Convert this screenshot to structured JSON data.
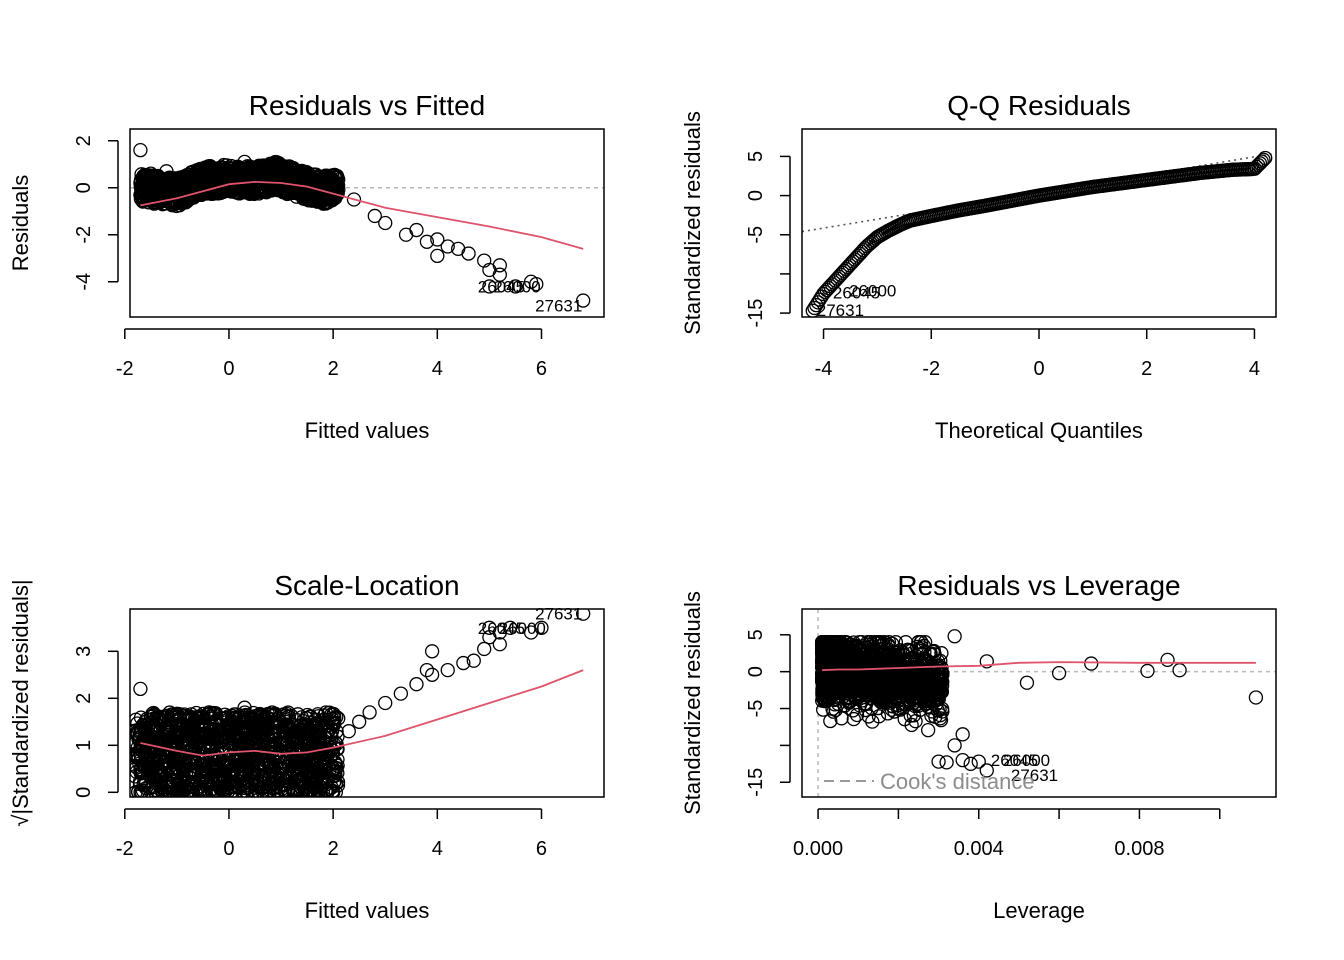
{
  "colors": {
    "points": "#000000",
    "smooth": "#df536b",
    "reference": "#b8b8b8",
    "cook": "#8c8c8c"
  },
  "chart_data": [
    {
      "id": "rvf",
      "type": "scatter",
      "title": "Residuals vs Fitted",
      "xlabel": "Fitted values",
      "ylabel": "Residuals",
      "xlim": [
        -1.9,
        7.2
      ],
      "ylim": [
        -5.5,
        2.5
      ],
      "xticks": [
        -2,
        0,
        2,
        4,
        6
      ],
      "yticks": [
        -4,
        -2,
        0,
        2
      ],
      "grid": false,
      "reference_line": {
        "y": 0,
        "style": "dotted"
      },
      "cluster": {
        "type": "band",
        "x": [
          -1.7,
          2.1
        ],
        "center": [
          [
            -1.7,
            0.0
          ],
          [
            -1.0,
            -0.2
          ],
          [
            -0.5,
            0.3
          ],
          [
            0.0,
            0.4
          ],
          [
            0.5,
            0.3
          ],
          [
            0.9,
            0.5
          ],
          [
            1.3,
            0.2
          ],
          [
            1.8,
            -0.1
          ],
          [
            2.1,
            0.0
          ]
        ],
        "spread": 0.6
      },
      "points": [
        [
          -1.7,
          1.6
        ],
        [
          -1.7,
          0.2
        ],
        [
          -1.5,
          0.6
        ],
        [
          -1.2,
          0.7
        ],
        [
          0.3,
          1.1
        ],
        [
          0.9,
          1.05
        ],
        [
          2.4,
          -0.5
        ],
        [
          2.8,
          -1.2
        ],
        [
          3.0,
          -1.5
        ],
        [
          3.4,
          -2.0
        ],
        [
          3.6,
          -1.8
        ],
        [
          4.0,
          -2.2
        ],
        [
          4.2,
          -2.5
        ],
        [
          4.4,
          -2.6
        ],
        [
          4.6,
          -2.8
        ],
        [
          3.8,
          -2.3
        ],
        [
          4.0,
          -2.9
        ],
        [
          4.9,
          -3.1
        ],
        [
          5.0,
          -3.5
        ],
        [
          5.2,
          -3.3
        ],
        [
          5.2,
          -3.7
        ],
        [
          5.0,
          -4.2
        ],
        [
          5.5,
          -4.2
        ],
        [
          5.8,
          -4.0
        ],
        [
          5.9,
          -4.1
        ],
        [
          6.8,
          -4.8
        ]
      ],
      "smooth": {
        "x": [
          -1.7,
          -1.0,
          -0.5,
          0.0,
          0.5,
          1.0,
          1.5,
          2.0,
          2.5,
          3.0,
          4.0,
          5.0,
          6.0,
          6.8
        ],
        "y": [
          -0.75,
          -0.45,
          -0.15,
          0.15,
          0.25,
          0.2,
          0.05,
          -0.25,
          -0.55,
          -0.85,
          -1.25,
          -1.65,
          -2.1,
          -2.6
        ]
      },
      "annotations": [
        {
          "text": "26045",
          "x": 4.7,
          "y": -4.2
        },
        {
          "text": "26000",
          "x": 5.0,
          "y": -4.2
        },
        {
          "text": "27631",
          "x": 5.8,
          "y": -5.0
        }
      ]
    },
    {
      "id": "qq",
      "type": "scatter",
      "title": "Q-Q Residuals",
      "xlabel": "Theoretical Quantiles",
      "ylabel": "Standardized residuals",
      "xlim": [
        -4.4,
        4.4
      ],
      "ylim": [
        -15.5,
        8.5
      ],
      "xticks": [
        -4,
        -2,
        0,
        2,
        4
      ],
      "yticks": [
        -15,
        -5,
        0,
        5
      ],
      "yticks_left": [
        -10
      ],
      "grid": false,
      "reference_line": {
        "x": [
          -4.4,
          4.4
        ],
        "y": [
          -4.6,
          5.4
        ]
      },
      "curve": {
        "x": [
          -4.2,
          -4.0,
          -3.8,
          -3.6,
          -3.4,
          -3.2,
          -3.0,
          -2.8,
          -2.6,
          -2.4,
          -2.0,
          -1.5,
          -1.0,
          0.0,
          1.0,
          2.0,
          3.0,
          3.6,
          4.0,
          4.2
        ],
        "y": [
          -14.7,
          -12.5,
          -11.0,
          -9.5,
          -8.0,
          -6.5,
          -5.3,
          -4.5,
          -3.8,
          -3.2,
          -2.6,
          -1.9,
          -1.3,
          0.0,
          1.1,
          2.0,
          2.9,
          3.3,
          3.4,
          4.8
        ]
      },
      "annotations": [
        {
          "text": "26045",
          "x": -3.9,
          "y": -12.4
        },
        {
          "text": "26000",
          "x": -3.6,
          "y": -12.1
        },
        {
          "text": "27631",
          "x": -4.2,
          "y": -14.6
        }
      ]
    },
    {
      "id": "sl",
      "type": "scatter",
      "title": "Scale-Location",
      "xlabel": "Fitted values",
      "ylabel": "√|Standardized residuals|",
      "xlim": [
        -1.9,
        7.2
      ],
      "ylim": [
        -0.1,
        3.9
      ],
      "xticks": [
        -2,
        0,
        2,
        4,
        6
      ],
      "yticks": [
        0,
        1,
        2,
        3
      ],
      "grid": false,
      "cluster": {
        "type": "band",
        "x": [
          -1.8,
          2.1
        ],
        "center": [
          [
            -1.8,
            0.8
          ],
          [
            -1.0,
            0.8
          ],
          [
            0.0,
            0.8
          ],
          [
            1.0,
            0.8
          ],
          [
            2.1,
            0.8
          ]
        ],
        "spread": 0.9
      },
      "points": [
        [
          -1.7,
          2.2
        ],
        [
          -1.7,
          0.8
        ],
        [
          0.3,
          1.8
        ],
        [
          2.3,
          1.3
        ],
        [
          2.5,
          1.5
        ],
        [
          2.7,
          1.7
        ],
        [
          3.0,
          1.9
        ],
        [
          3.3,
          2.1
        ],
        [
          3.6,
          2.3
        ],
        [
          3.9,
          2.5
        ],
        [
          4.2,
          2.6
        ],
        [
          4.5,
          2.75
        ],
        [
          4.7,
          2.8
        ],
        [
          3.8,
          2.6
        ],
        [
          3.9,
          3.0
        ],
        [
          4.9,
          3.05
        ],
        [
          5.0,
          3.3
        ],
        [
          5.2,
          3.15
        ],
        [
          5.2,
          3.4
        ],
        [
          5.0,
          3.5
        ],
        [
          5.4,
          3.5
        ],
        [
          5.8,
          3.4
        ],
        [
          6.0,
          3.5
        ],
        [
          6.8,
          3.8
        ]
      ],
      "smooth": {
        "x": [
          -1.7,
          -1.0,
          -0.5,
          0.0,
          0.5,
          1.0,
          1.5,
          2.0,
          3.0,
          4.0,
          5.0,
          6.0,
          6.8
        ],
        "y": [
          1.05,
          0.88,
          0.78,
          0.85,
          0.88,
          0.82,
          0.85,
          0.95,
          1.2,
          1.55,
          1.9,
          2.25,
          2.6
        ]
      },
      "annotations": [
        {
          "text": "26045",
          "x": 4.7,
          "y": 3.5
        },
        {
          "text": "26000",
          "x": 5.1,
          "y": 3.5
        },
        {
          "text": "27631",
          "x": 5.8,
          "y": 3.8
        }
      ]
    },
    {
      "id": "rvl",
      "type": "scatter",
      "title": "Residuals vs Leverage",
      "xlabel": "Leverage",
      "ylabel": "Standardized residuals",
      "xlim": [
        -0.0004,
        0.0114
      ],
      "ylim": [
        -17,
        8.5
      ],
      "xticks": [
        0.0,
        0.002,
        0.004,
        0.006,
        0.008,
        0.01
      ],
      "xtick_labels": [
        "0.000",
        "",
        "0.004",
        "",
        "0.008",
        ""
      ],
      "yticks": [
        -15,
        -5,
        0,
        5
      ],
      "yticks_left": [
        -10
      ],
      "grid": false,
      "reference_line": {
        "y": 0,
        "x0": 0,
        "style": "dotted"
      },
      "cluster": {
        "type": "blob",
        "x": [
          0.0001,
          0.0031
        ],
        "y": [
          -9,
          4
        ],
        "n": 1500
      },
      "points": [
        [
          0.0034,
          -10.0
        ],
        [
          0.0036,
          -12.0
        ],
        [
          0.0036,
          -8.5
        ],
        [
          0.003,
          -12.2
        ],
        [
          0.0032,
          -12.3
        ],
        [
          0.0038,
          -12.5
        ],
        [
          0.004,
          -12.2
        ],
        [
          0.0042,
          -13.4
        ],
        [
          0.0034,
          4.8
        ],
        [
          0.0042,
          1.4
        ],
        [
          0.0052,
          -1.5
        ],
        [
          0.006,
          -0.2
        ],
        [
          0.0068,
          1.1
        ],
        [
          0.0082,
          0.1
        ],
        [
          0.0087,
          1.6
        ],
        [
          0.009,
          0.2
        ],
        [
          0.0109,
          -3.5
        ]
      ],
      "smooth": {
        "x": [
          0.0001,
          0.0005,
          0.001,
          0.002,
          0.003,
          0.004,
          0.005,
          0.006,
          0.008,
          0.0109
        ],
        "y": [
          0.2,
          0.3,
          0.3,
          0.5,
          0.7,
          0.8,
          1.2,
          1.3,
          1.2,
          1.2
        ]
      },
      "annotations": [
        {
          "text": "26045",
          "x": 0.0042,
          "y": -12.0
        },
        {
          "text": "26000",
          "x": 0.0045,
          "y": -12.0
        },
        {
          "text": "27631",
          "x": 0.0047,
          "y": -14.0
        }
      ],
      "cook_legend": {
        "text": "Cook's distance",
        "position": "bottom-left"
      }
    }
  ]
}
